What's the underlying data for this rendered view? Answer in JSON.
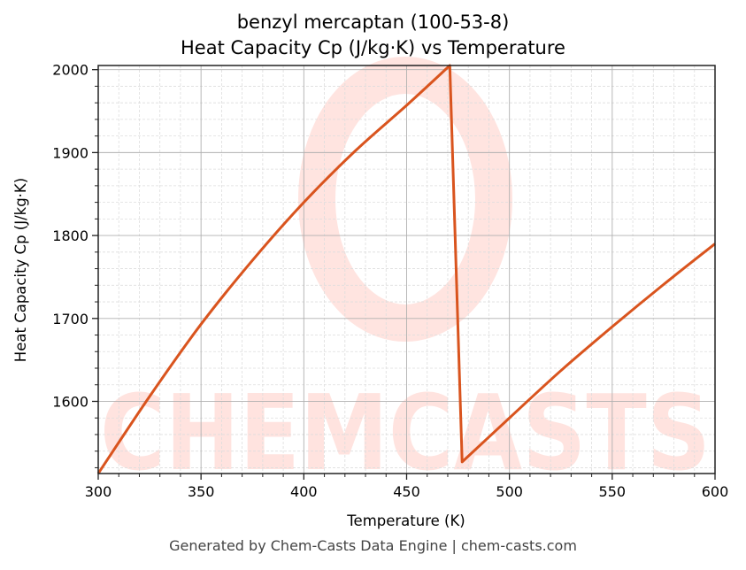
{
  "chart_data": {
    "type": "line",
    "title": "benzyl mercaptan (100-53-8)",
    "subtitle": "Heat Capacity Cp (J/kg·K) vs Temperature",
    "xlabel": "Temperature (K)",
    "ylabel": "Heat Capacity Cp (J/kg·K)",
    "xlim": [
      300,
      600
    ],
    "ylim": [
      1513,
      2005
    ],
    "x_ticks": [
      300,
      350,
      400,
      450,
      500,
      550,
      600
    ],
    "y_ticks": [
      1600,
      1700,
      1800,
      1900,
      2000
    ],
    "grid": true,
    "legend": null,
    "series": [
      {
        "name": "Cp",
        "color": "#d9541e",
        "x": [
          300,
          325,
          350,
          375,
          400,
          425,
          450,
          471,
          477,
          500,
          525,
          550,
          575,
          600
        ],
        "y": [
          1513,
          1606,
          1693,
          1770,
          1840,
          1902,
          1957,
          2005,
          1527,
          1580,
          1637,
          1690,
          1741,
          1790
        ]
      }
    ]
  },
  "watermark": "CHEMCASTS",
  "footer": "Generated by Chem-Casts Data Engine | chem-casts.com"
}
